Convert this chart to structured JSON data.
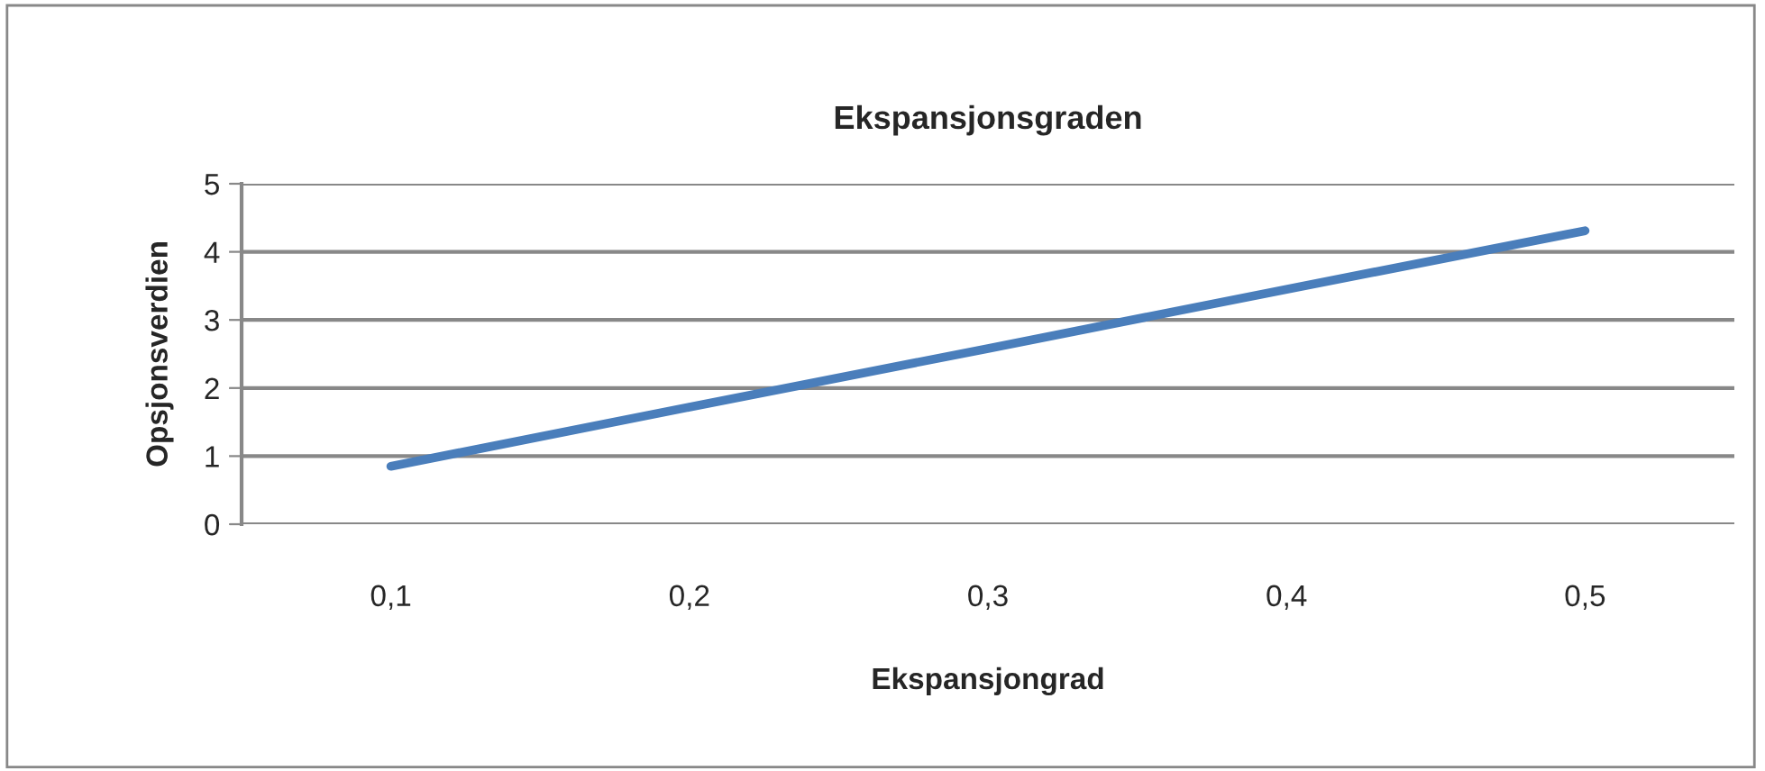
{
  "chart_data": {
    "type": "line",
    "title": "Ekspansjonsgraden",
    "xlabel": "Ekspansjongrad",
    "ylabel": "Opsjonsverdien",
    "categories": [
      "0,1",
      "0,2",
      "0,3",
      "0,4",
      "0,5"
    ],
    "series": [
      {
        "color": "#4a7ebb",
        "values": [
          0.85,
          1.72,
          2.58,
          3.45,
          4.31
        ]
      }
    ],
    "ylim": [
      0,
      5
    ],
    "yticks": [
      0,
      1,
      2,
      3,
      4,
      5
    ],
    "grid": "y",
    "marker": "none",
    "line_style": "solid"
  }
}
